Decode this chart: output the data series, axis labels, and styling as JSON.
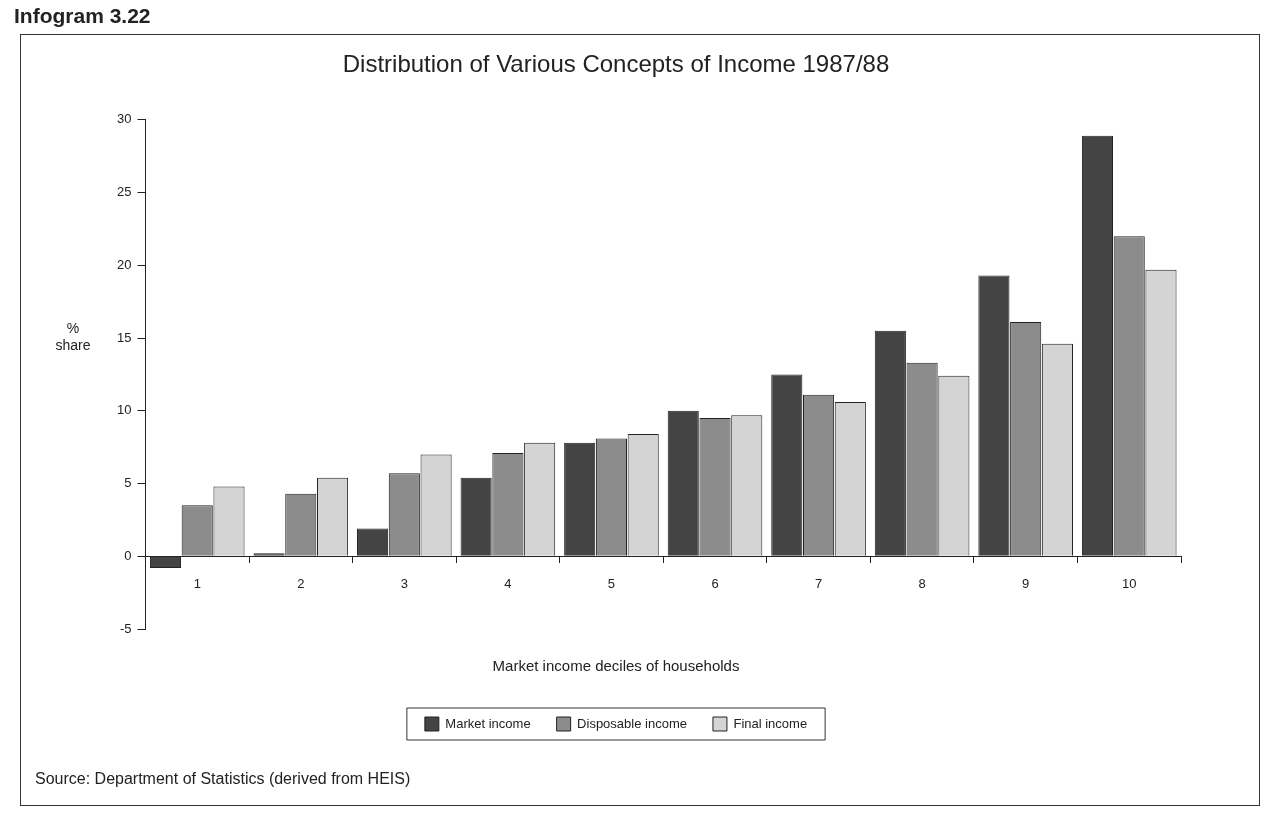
{
  "chart_data": {
    "type": "bar",
    "title": "Distribution of Various Concepts of Income 1987/88",
    "xlabel": "Market income deciles of households",
    "ylabel": "% share",
    "categories": [
      "1",
      "2",
      "3",
      "4",
      "5",
      "6",
      "7",
      "8",
      "9",
      "10"
    ],
    "series": [
      {
        "name": "Market income",
        "color": "#444444",
        "values": [
          -0.8,
          0.2,
          1.9,
          5.4,
          7.8,
          10.0,
          12.5,
          15.5,
          19.3,
          28.9
        ]
      },
      {
        "name": "Disposable income",
        "color": "#8c8c8c",
        "values": [
          3.5,
          4.3,
          5.7,
          7.1,
          8.1,
          9.5,
          11.1,
          13.3,
          16.1,
          22.0
        ]
      },
      {
        "name": "Final income",
        "color": "#d4d4d4",
        "values": [
          4.8,
          5.4,
          7.0,
          7.8,
          8.4,
          9.7,
          10.6,
          12.4,
          14.6,
          19.7
        ]
      }
    ],
    "ylim": [
      -5,
      30
    ],
    "yticks": [
      -5,
      0,
      5,
      10,
      15,
      20,
      25,
      30
    ],
    "legend": "bottom",
    "annotations": [
      "Infogram 3.22",
      "Source: Department of Statistics (derived from HEIS)"
    ]
  }
}
